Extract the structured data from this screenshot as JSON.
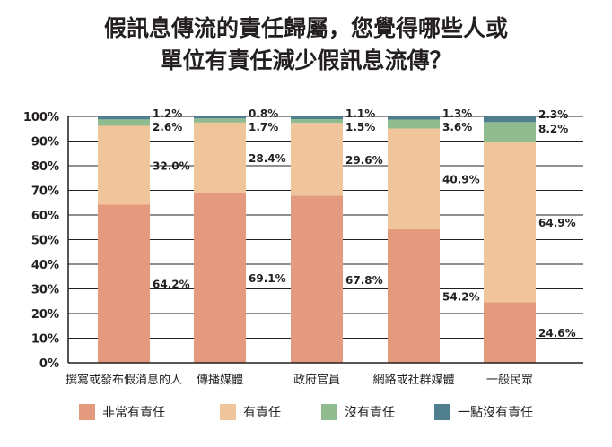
{
  "title_lines": [
    "假訊息傳流的責任歸屬，您覺得哪些人或",
    "單位有責任減少假訊息流傳？"
  ],
  "colors": {
    "非常有責任": "#e39a7f",
    "有責任": "#f0c59b",
    "沒有責任": "#8fbb8f",
    "一點沒有責任": "#4f7e8e",
    "axis": "#231f20",
    "grid": "#231f20"
  },
  "chart_data": {
    "type": "bar",
    "stacked": true,
    "categories": [
      "撰寫或發布假消息的人",
      "傳播媒體",
      "政府官員",
      "網路或社群媒體",
      "一般民眾"
    ],
    "series": [
      {
        "name": "非常有責任",
        "values": [
          64.2,
          69.1,
          67.8,
          54.2,
          24.6
        ],
        "labels": [
          "64.2%",
          "69.1%",
          "67.8%",
          "54.2%",
          "24.6%"
        ]
      },
      {
        "name": "有責任",
        "values": [
          32.0,
          28.4,
          29.6,
          40.9,
          64.9
        ],
        "labels": [
          "32.0%",
          "28.4%",
          "29.6%",
          "40.9%",
          "64.9%"
        ]
      },
      {
        "name": "沒有責任",
        "values": [
          2.6,
          1.7,
          1.5,
          3.6,
          8.2
        ],
        "labels": [
          "2.6%",
          "1.7%",
          "1.5%",
          "3.6%",
          "8.2%"
        ]
      },
      {
        "name": "一點沒有責任",
        "values": [
          1.2,
          0.8,
          1.1,
          1.3,
          2.3
        ],
        "labels": [
          "1.2%",
          "0.8%",
          "1.1%",
          "1.3%",
          "2.3%"
        ]
      }
    ],
    "ylim": [
      0,
      100
    ],
    "yticks": [
      "0%",
      "10%",
      "20%",
      "30%",
      "40%",
      "50%",
      "60%",
      "70%",
      "80%",
      "90%",
      "100%"
    ],
    "grid": true,
    "legend_position": "bottom"
  }
}
